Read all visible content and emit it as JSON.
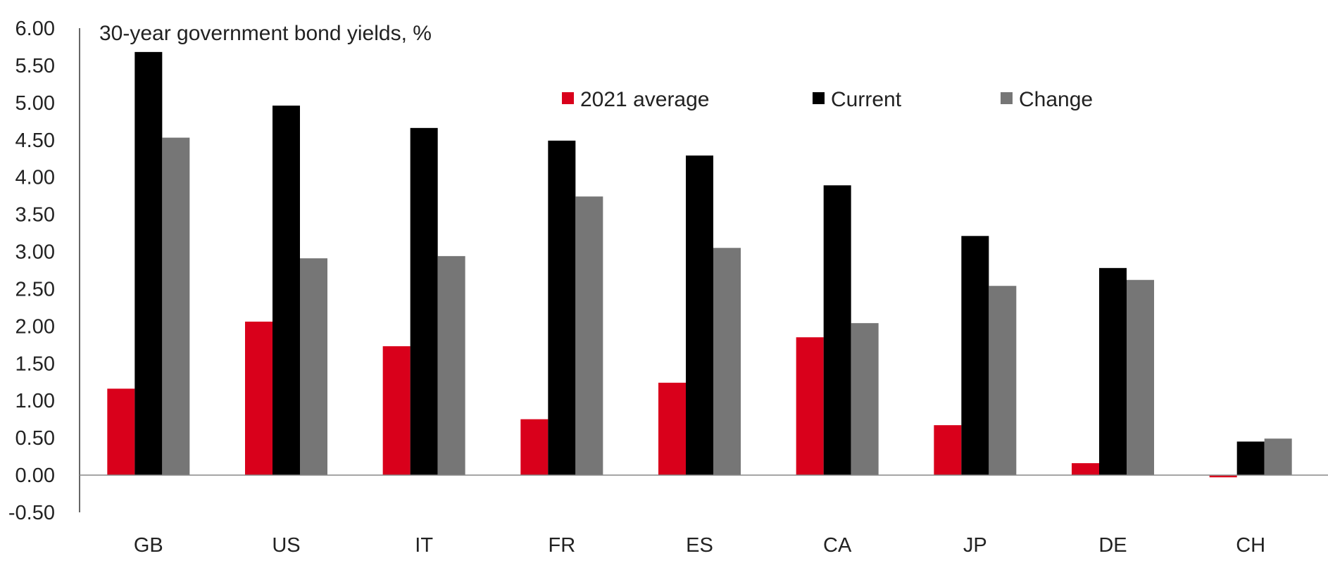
{
  "chart_data": {
    "type": "bar",
    "title": "30-year government bond yields, %",
    "xlabel": "",
    "ylabel": "",
    "ylim": [
      -0.5,
      6.0
    ],
    "yticks": [
      "6.00",
      "5.50",
      "5.00",
      "4.50",
      "4.00",
      "3.50",
      "3.00",
      "2.50",
      "2.00",
      "1.50",
      "1.00",
      "0.50",
      "0.00",
      "-0.50"
    ],
    "categories": [
      "GB",
      "US",
      "IT",
      "FR",
      "ES",
      "CA",
      "JP",
      "DE",
      "CH"
    ],
    "series": [
      {
        "name": "2021 average",
        "color": "#d9001b",
        "values": [
          1.16,
          2.06,
          1.73,
          0.75,
          1.24,
          1.85,
          0.67,
          0.16,
          -0.03
        ]
      },
      {
        "name": "Current",
        "color": "#000000",
        "values": [
          5.68,
          4.96,
          4.66,
          4.49,
          4.29,
          3.89,
          3.21,
          2.78,
          0.45
        ]
      },
      {
        "name": "Change",
        "color": "#767676",
        "values": [
          4.53,
          2.91,
          2.94,
          3.74,
          3.05,
          2.04,
          2.54,
          2.62,
          0.49
        ]
      }
    ],
    "grid": false,
    "legend_position": "top-center"
  }
}
